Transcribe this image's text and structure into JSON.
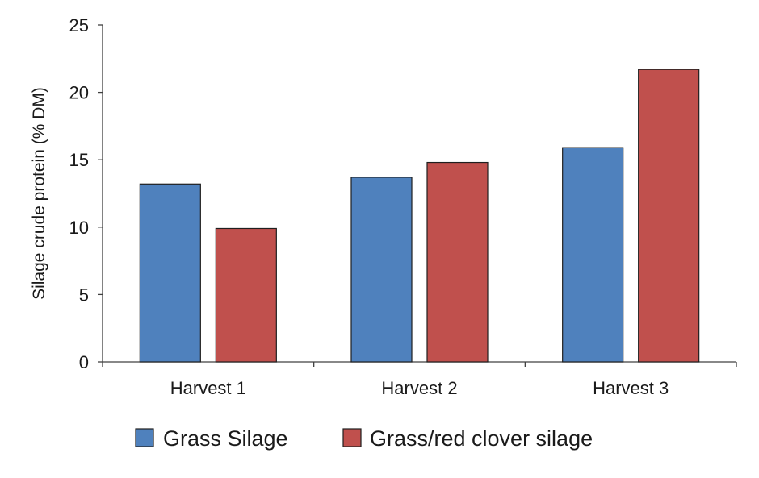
{
  "chart_data": {
    "type": "bar",
    "title": "",
    "xlabel": "",
    "ylabel": "Silage crude protein  (% DM)",
    "categories": [
      "Harvest 1",
      "Harvest 2",
      "Harvest 3"
    ],
    "series": [
      {
        "name": "Grass Silage",
        "color": "#4f81bd",
        "values": [
          13.2,
          13.7,
          15.9
        ]
      },
      {
        "name": "Grass/red clover silage",
        "color": "#c0504d",
        "values": [
          9.9,
          14.8,
          21.7
        ]
      }
    ],
    "ylim": [
      0,
      25
    ],
    "yticks": [
      "0",
      "5",
      "10",
      "15",
      "20",
      "25"
    ],
    "grid": false,
    "legend": "bottom"
  }
}
